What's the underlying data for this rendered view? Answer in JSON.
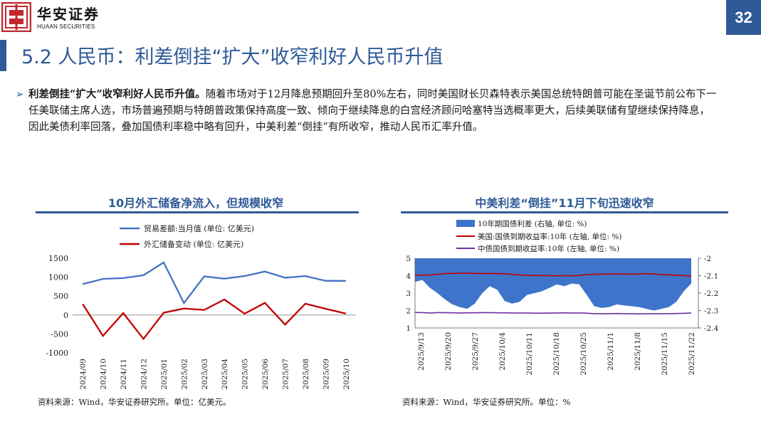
{
  "header": {
    "brand_cn": "华安证券",
    "brand_en": "HUAAN SECURITIES",
    "page_number": "32",
    "colors": {
      "primary": "#2f5a97",
      "logo_red": "#c0282e"
    },
    "logo_icon": "huaan-logo-icon"
  },
  "title": "5.2 人民币：利差倒挂“扩大”收窄利好人民币升值",
  "bullet": {
    "lead": "利差倒挂“扩大”收窄利好人民币升值。",
    "text": "随着市场对于12月降息预期回升至80%左右，同时美国财长贝森特表示美国总统特朗普可能在圣诞节前公布下一任美联储主席人选，市场普遍预期与特朗普政策保持高度一致、倾向于继续降息的白宫经济顾问哈塞特当选概率更大，后续美联储有望继续保持降息，因此美债利率回落，叠加国债利率稳中略有回升，中美利差“倒挂”有所收窄，推动人民币汇率升值。"
  },
  "chart_data": [
    {
      "type": "line",
      "title": "10月外汇储备净流入，但规模收窄",
      "categories": [
        "2024/09",
        "2024/10",
        "2024/11",
        "2024/12",
        "2025/01",
        "2025/02",
        "2025/03",
        "2025/04",
        "2025/05",
        "2025/06",
        "2025/07",
        "2025/08",
        "2025/09",
        "2025/10"
      ],
      "series": [
        {
          "name": "贸易差额:当月值 (单位: 亿美元)",
          "color": "#4472c4",
          "values": [
            818,
            955,
            975,
            1050,
            1390,
            315,
            1020,
            960,
            1030,
            1150,
            985,
            1030,
            905,
            902
          ]
        },
        {
          "name": "外汇储备变动 (单位: 亿美元)",
          "color": "#c00000",
          "values": [
            290,
            -550,
            50,
            -630,
            60,
            172,
            135,
            410,
            36,
            322,
            -252,
            299,
            165,
            40
          ]
        }
      ],
      "ylim": [
        -1000,
        1500
      ],
      "yticks": [
        "1500",
        "1000",
        "500",
        "0",
        "-500",
        "-1000"
      ],
      "legend": "top",
      "source": "资料来源：Wind，华安证券研究所。单位：亿美元。"
    },
    {
      "type": "area",
      "title": "中美利差“倒挂”11月下旬迅速收窄",
      "x_ticks": [
        "2025/9/13",
        "2025/9/20",
        "2025/9/27",
        "2025/10/4",
        "2025/10/11",
        "2025/10/18",
        "2025/10/25",
        "2025/11/1",
        "2025/11/8",
        "2025/11/15",
        "2025/11/22"
      ],
      "dates": [
        "9/13",
        "9/15",
        "9/17",
        "9/19",
        "9/21",
        "9/23",
        "9/25",
        "9/27",
        "9/29",
        "10/1",
        "10/3",
        "10/5",
        "10/7",
        "10/9",
        "10/11",
        "10/13",
        "10/15",
        "10/17",
        "10/19",
        "10/21",
        "10/23",
        "10/25",
        "10/27",
        "10/29",
        "10/31",
        "11/2",
        "11/4",
        "11/6",
        "11/8",
        "11/10",
        "11/12",
        "11/14",
        "11/16",
        "11/18",
        "11/20",
        "11/22",
        "11/24",
        "11/26"
      ],
      "series": [
        {
          "name": "10年期国债利差 (右轴, 单位: %)",
          "color": "#3e74c9",
          "axis": "right",
          "values": [
            -2.135,
            -2.125,
            -2.17,
            -2.2,
            -2.235,
            -2.265,
            -2.28,
            -2.29,
            -2.26,
            -2.2,
            -2.16,
            -2.18,
            -2.245,
            -2.26,
            -2.25,
            -2.21,
            -2.2,
            -2.19,
            -2.17,
            -2.15,
            -2.16,
            -2.145,
            -2.15,
            -2.21,
            -2.275,
            -2.285,
            -2.28,
            -2.265,
            -2.27,
            -2.275,
            -2.28,
            -2.29,
            -2.3,
            -2.29,
            -2.28,
            -2.25,
            -2.19,
            -2.145
          ]
        },
        {
          "name": "美国:国债到期收益率:10年 (左轴, 单位: %)",
          "color": "#c00000",
          "axis": "left",
          "values": [
            4.04,
            4.03,
            4.04,
            4.08,
            4.12,
            4.13,
            4.14,
            4.15,
            4.13,
            4.12,
            4.13,
            4.12,
            4.11,
            4.07,
            4.05,
            4.02,
            4.01,
            4.01,
            4.0,
            3.99,
            4.0,
            3.99,
            4.01,
            4.06,
            4.08,
            4.09,
            4.09,
            4.11,
            4.09,
            4.09,
            4.09,
            4.12,
            4.1,
            4.06,
            4.05,
            4.03,
            4.0,
            3.99
          ]
        },
        {
          "name": "中债国债到期收益率:10年 (左轴, 单位: %)",
          "color": "#7030a0",
          "axis": "left",
          "values": [
            1.89,
            1.88,
            1.86,
            1.88,
            1.88,
            1.87,
            1.86,
            1.87,
            1.87,
            1.88,
            1.88,
            1.87,
            1.87,
            1.86,
            1.86,
            1.86,
            1.85,
            1.85,
            1.86,
            1.86,
            1.87,
            1.86,
            1.86,
            1.85,
            1.82,
            1.82,
            1.82,
            1.83,
            1.82,
            1.82,
            1.81,
            1.82,
            1.82,
            1.82,
            1.82,
            1.83,
            1.84,
            1.86
          ]
        }
      ],
      "ylim_left": [
        1,
        5
      ],
      "ylim_right": [
        -2.4,
        -2.0
      ],
      "yticks_left": [
        "5",
        "4",
        "3",
        "2",
        "1"
      ],
      "yticks_right": [
        "-2",
        "-2.1",
        "-2.2",
        "-2.3",
        "-2.4"
      ],
      "legend": "top",
      "source": "资料来源：Wind，华安证券研究所。单位：%"
    }
  ]
}
